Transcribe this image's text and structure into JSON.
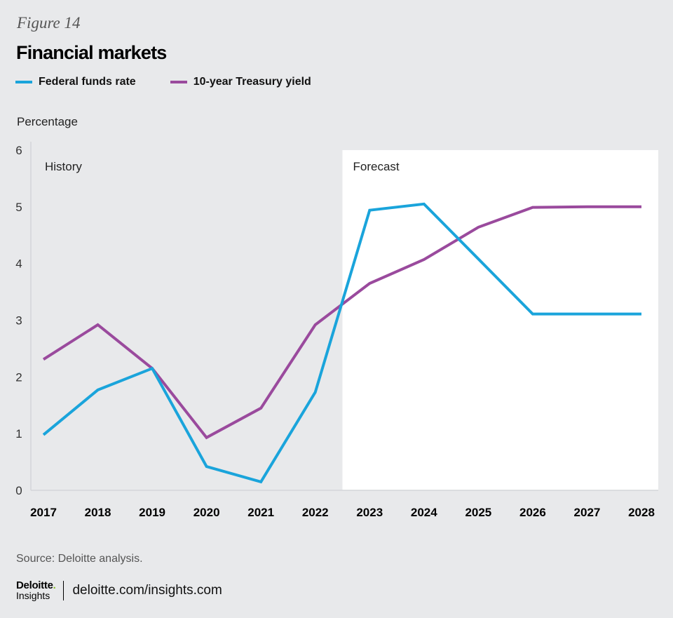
{
  "figure_label": "Figure 14",
  "footer": {
    "source": "Source: Deloitte analysis.",
    "logo_top": "Deloitte",
    "logo_dot": ".",
    "logo_bottom": "Insights",
    "url": "deloitte.com/insights.com"
  },
  "colors": {
    "federal_funds_rate": "#1aa4db",
    "treasury_yield": "#9a4a9d",
    "history_bg": "#e8e9eb",
    "forecast_bg": "#ffffff"
  },
  "chart_data": {
    "type": "line",
    "title": "Financial markets",
    "ylabel": "Percentage",
    "xlabel": "",
    "ylim": [
      0,
      6
    ],
    "yticks": [
      "0",
      "1",
      "2",
      "3",
      "4",
      "5",
      "6"
    ],
    "x": [
      "2017",
      "2018",
      "2019",
      "2020",
      "2021",
      "2022",
      "2023",
      "2024",
      "2025",
      "2026",
      "2027",
      "2028"
    ],
    "legend_position": "top-left",
    "grid": false,
    "regions": [
      {
        "label": "History",
        "from": "2017",
        "to": "2022"
      },
      {
        "label": "Forecast",
        "from": "2023",
        "to": "2028",
        "shaded": true
      }
    ],
    "series": [
      {
        "name": "Federal funds rate",
        "values": [
          0.98,
          1.77,
          2.15,
          0.42,
          0.15,
          1.73,
          4.94,
          5.05,
          4.08,
          3.11,
          3.11,
          3.11
        ]
      },
      {
        "name": "10-year Treasury yield",
        "values": [
          2.31,
          2.92,
          2.15,
          0.93,
          1.45,
          2.92,
          3.65,
          4.07,
          4.64,
          4.99,
          5.0,
          5.0
        ]
      }
    ]
  }
}
